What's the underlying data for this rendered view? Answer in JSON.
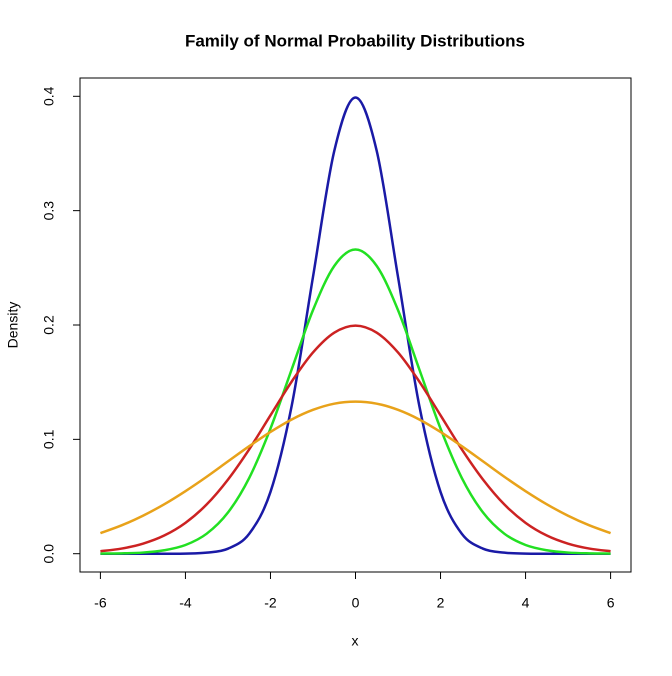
{
  "chart_data": {
    "type": "line",
    "title": "Family of Normal Probability Distributions",
    "x_label": "x",
    "y_label": "Density",
    "x": [
      -6,
      -5.5,
      -5,
      -4.5,
      -4,
      -3.5,
      -3,
      -2.5,
      -2,
      -1.5,
      -1,
      -0.5,
      0,
      0.5,
      1,
      1.5,
      2,
      2.5,
      3,
      3.5,
      4,
      4.5,
      5,
      5.5,
      6
    ],
    "series": [
      {
        "color": "#1a1aa6",
        "values": [
          0,
          0,
          0,
          0,
          0.0001,
          0.0009,
          0.0044,
          0.0175,
          0.054,
          0.1295,
          0.242,
          0.3521,
          0.3989,
          0.3521,
          0.242,
          0.1295,
          0.054,
          0.0175,
          0.0044,
          0.0009,
          0.0001,
          0,
          0,
          0,
          0
        ]
      },
      {
        "color": "#22e022",
        "values": [
          0.0001,
          0.0003,
          0.001,
          0.003,
          0.0076,
          0.0175,
          0.036,
          0.0663,
          0.1094,
          0.1613,
          0.213,
          0.2516,
          0.266,
          0.2516,
          0.213,
          0.1613,
          0.1094,
          0.0663,
          0.036,
          0.0175,
          0.0076,
          0.003,
          0.001,
          0.0003,
          0.0001
        ]
      },
      {
        "color": "#cc2222",
        "values": [
          0.0022,
          0.0045,
          0.0088,
          0.0159,
          0.027,
          0.0431,
          0.0648,
          0.0913,
          0.121,
          0.1506,
          0.176,
          0.1933,
          0.1995,
          0.1933,
          0.176,
          0.1506,
          0.121,
          0.0913,
          0.0648,
          0.0431,
          0.027,
          0.0159,
          0.0088,
          0.0045,
          0.0022
        ]
      },
      {
        "color": "#e8a21a",
        "values": [
          0.018,
          0.0248,
          0.0332,
          0.0432,
          0.0547,
          0.0673,
          0.0807,
          0.094,
          0.1065,
          0.1174,
          0.1258,
          0.1312,
          0.133,
          0.1312,
          0.1258,
          0.1174,
          0.1065,
          0.094,
          0.0807,
          0.0673,
          0.0547,
          0.0432,
          0.0332,
          0.0248,
          0.018
        ]
      }
    ],
    "xlim": [
      -6.48,
      6.48
    ],
    "xticks": [
      -6,
      -4,
      -2,
      0,
      2,
      4,
      6
    ],
    "ylim": [
      -0.016,
      0.416
    ],
    "yticks": [
      {
        "value": 0,
        "label": "0.0"
      },
      0.1,
      0.2,
      0.3,
      0.4
    ]
  }
}
